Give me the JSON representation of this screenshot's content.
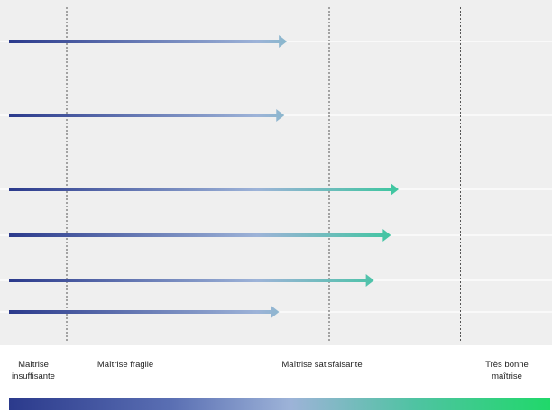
{
  "chart_data": {
    "type": "bar",
    "orientation": "horizontal",
    "title": "",
    "xlabel": "",
    "ylabel": "",
    "x_axis": {
      "min": 0,
      "max": 4,
      "unit": "mastery level"
    },
    "grid": true,
    "threshold_positions": [
      0.5,
      1.5,
      2.5,
      3.5
    ],
    "bars": [
      {
        "value": 2.14
      },
      {
        "value": 2.12
      },
      {
        "value": 3.0
      },
      {
        "value": 2.94
      },
      {
        "value": 2.81
      },
      {
        "value": 2.08
      }
    ],
    "level_labels": [
      "Maîtrise insuffisante",
      "Maîtrise fragile",
      "Maîtrise satisfaisante",
      "Très bonne maîtrise"
    ],
    "colors": {
      "plot_background": "#efefef",
      "start": "#2b3a8c",
      "mid": "#9db3d8",
      "end": "#20d86a",
      "threshold_line": "#555555"
    }
  },
  "legend": {
    "levels": [
      "Maîtrise insuffisante",
      "Maîtrise fragile",
      "Maîtrise satisfaisante",
      "Très bonne maîtrise"
    ]
  }
}
